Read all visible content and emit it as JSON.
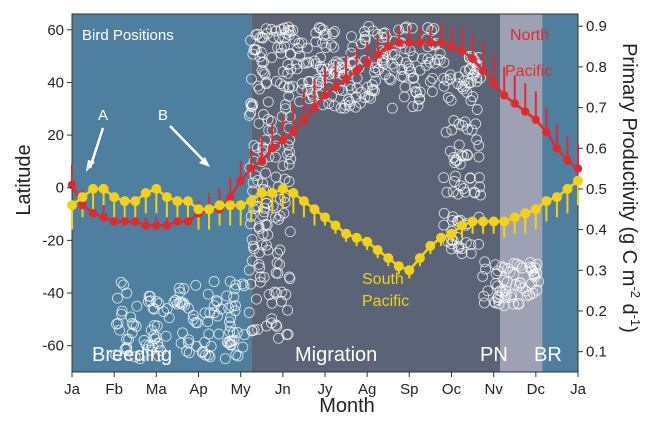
{
  "chart_data": {
    "type": "line",
    "xlabel": "Month",
    "ylabel_left": "Latitude",
    "ylabel_right_parts": [
      "Primary Productivity (g C m",
      "-2",
      " d",
      "-1",
      ")"
    ],
    "inset_label": "Bird Positions",
    "x_ticks": [
      "Ja",
      "Fb",
      "Ma",
      "Ap",
      "My",
      "Jn",
      "Jy",
      "Ag",
      "Sp",
      "Oc",
      "Nv",
      "Dc",
      "Ja"
    ],
    "xlim": [
      0,
      12
    ],
    "y_left": {
      "lim": [
        -70,
        66
      ],
      "ticks": [
        -60,
        -40,
        -20,
        0,
        20,
        40,
        60
      ]
    },
    "y_right": {
      "lim": [
        0.05,
        0.93
      ],
      "ticks": [
        0.1,
        0.2,
        0.3,
        0.4,
        0.5,
        0.6,
        0.7,
        0.8,
        0.9
      ]
    },
    "phases": [
      {
        "name": "Breeding",
        "start": 0,
        "end": 4.25,
        "color": "#4e7f9e"
      },
      {
        "name": "Migration",
        "start": 4.25,
        "end": 10.15,
        "color": "#5a6476"
      },
      {
        "name": "PN",
        "start": 10.15,
        "end": 11.15,
        "color": "#9ea1b3"
      },
      {
        "name": "BR",
        "start": 11.15,
        "end": 12,
        "color": "#4e7f9e"
      }
    ],
    "annotations": [
      {
        "text": "A",
        "x": 0.5,
        "y": 0.55
      },
      {
        "text": "B",
        "x": 3.8,
        "y": 0.56
      }
    ],
    "series": [
      {
        "name": "North Pacific",
        "name_lines": [
          "North",
          "Pacific"
        ],
        "color": "#e02b2e",
        "axis": "right",
        "x": [
          0.0,
          0.25,
          0.5,
          0.75,
          1.0,
          1.25,
          1.5,
          1.75,
          2.0,
          2.25,
          2.5,
          2.75,
          3.0,
          3.25,
          3.5,
          3.75,
          4.0,
          4.25,
          4.5,
          4.75,
          5.0,
          5.25,
          5.5,
          5.75,
          6.0,
          6.25,
          6.5,
          6.75,
          7.0,
          7.25,
          7.5,
          7.75,
          8.0,
          8.25,
          8.5,
          8.75,
          9.0,
          9.25,
          9.5,
          9.75,
          10.0,
          10.25,
          10.5,
          10.75,
          11.0,
          11.25,
          11.5,
          11.75,
          12.0
        ],
        "y": [
          0.51,
          0.46,
          0.44,
          0.43,
          0.42,
          0.42,
          0.42,
          0.41,
          0.41,
          0.41,
          0.42,
          0.42,
          0.44,
          0.45,
          0.45,
          0.48,
          0.52,
          0.55,
          0.57,
          0.6,
          0.62,
          0.64,
          0.67,
          0.7,
          0.73,
          0.75,
          0.77,
          0.79,
          0.81,
          0.83,
          0.85,
          0.86,
          0.86,
          0.86,
          0.86,
          0.86,
          0.85,
          0.84,
          0.82,
          0.79,
          0.76,
          0.73,
          0.71,
          0.69,
          0.67,
          0.64,
          0.6,
          0.57,
          0.55
        ],
        "err": [
          0.05,
          0.04,
          0.03,
          0.03,
          0.02,
          0.02,
          0.02,
          0.02,
          0.02,
          0.02,
          0.03,
          0.03,
          0.03,
          0.04,
          0.05,
          0.05,
          0.05,
          0.05,
          0.06,
          0.06,
          0.06,
          0.07,
          0.07,
          0.07,
          0.07,
          0.06,
          0.06,
          0.06,
          0.05,
          0.05,
          0.04,
          0.04,
          0.04,
          0.04,
          0.04,
          0.05,
          0.05,
          0.06,
          0.06,
          0.07,
          0.07,
          0.07,
          0.07,
          0.07,
          0.07,
          0.06,
          0.06,
          0.06,
          0.06
        ]
      },
      {
        "name": "South Pacific",
        "name_lines": [
          "South",
          "Pacific"
        ],
        "color": "#f2d218",
        "axis": "right",
        "x": [
          0.0,
          0.25,
          0.5,
          0.75,
          1.0,
          1.25,
          1.5,
          1.75,
          2.0,
          2.25,
          2.5,
          2.75,
          3.0,
          3.25,
          3.5,
          3.75,
          4.0,
          4.25,
          4.5,
          4.75,
          5.0,
          5.25,
          5.5,
          5.75,
          6.0,
          6.25,
          6.5,
          6.75,
          7.0,
          7.25,
          7.5,
          7.75,
          8.0,
          8.25,
          8.5,
          8.75,
          9.0,
          9.25,
          9.5,
          9.75,
          10.0,
          10.25,
          10.5,
          10.75,
          11.0,
          11.25,
          11.5,
          11.75,
          12.0
        ],
        "y": [
          0.46,
          0.48,
          0.5,
          0.5,
          0.48,
          0.47,
          0.47,
          0.49,
          0.5,
          0.48,
          0.47,
          0.47,
          0.45,
          0.45,
          0.46,
          0.46,
          0.46,
          0.47,
          0.49,
          0.49,
          0.5,
          0.49,
          0.47,
          0.45,
          0.43,
          0.41,
          0.39,
          0.38,
          0.37,
          0.35,
          0.33,
          0.31,
          0.3,
          0.33,
          0.36,
          0.38,
          0.39,
          0.41,
          0.42,
          0.42,
          0.42,
          0.42,
          0.43,
          0.44,
          0.45,
          0.47,
          0.48,
          0.5,
          0.52
        ],
        "err": [
          0.06,
          0.05,
          0.05,
          0.04,
          0.05,
          0.05,
          0.05,
          0.05,
          0.06,
          0.05,
          0.05,
          0.05,
          0.05,
          0.05,
          0.05,
          0.05,
          0.05,
          0.05,
          0.05,
          0.05,
          0.05,
          0.05,
          0.04,
          0.04,
          0.02,
          0.02,
          0.02,
          0.02,
          0.02,
          0.02,
          0.02,
          0.02,
          0.02,
          0.02,
          0.02,
          0.02,
          0.02,
          0.03,
          0.03,
          0.03,
          0.03,
          0.04,
          0.04,
          0.05,
          0.05,
          0.05,
          0.05,
          0.06,
          0.06
        ]
      }
    ],
    "bird_positions": {
      "axis": "left",
      "style": "open circles",
      "color": "#ffffff",
      "clusters": [
        {
          "x_range": [
            1.0,
            4.1
          ],
          "lat_range": [
            -65,
            -35
          ]
        },
        {
          "x_range": [
            4.2,
            5.2
          ],
          "lat_range": [
            -60,
            62
          ]
        },
        {
          "x_range": [
            4.3,
            8.8
          ],
          "lat_range": [
            45,
            62
          ]
        },
        {
          "x_range": [
            5.0,
            8.6
          ],
          "lat_range": [
            30,
            48
          ]
        },
        {
          "x_range": [
            8.8,
            9.7
          ],
          "lat_range": [
            -25,
            50
          ]
        },
        {
          "x_range": [
            9.7,
            11.1
          ],
          "lat_range": [
            -45,
            -28
          ]
        }
      ]
    }
  }
}
